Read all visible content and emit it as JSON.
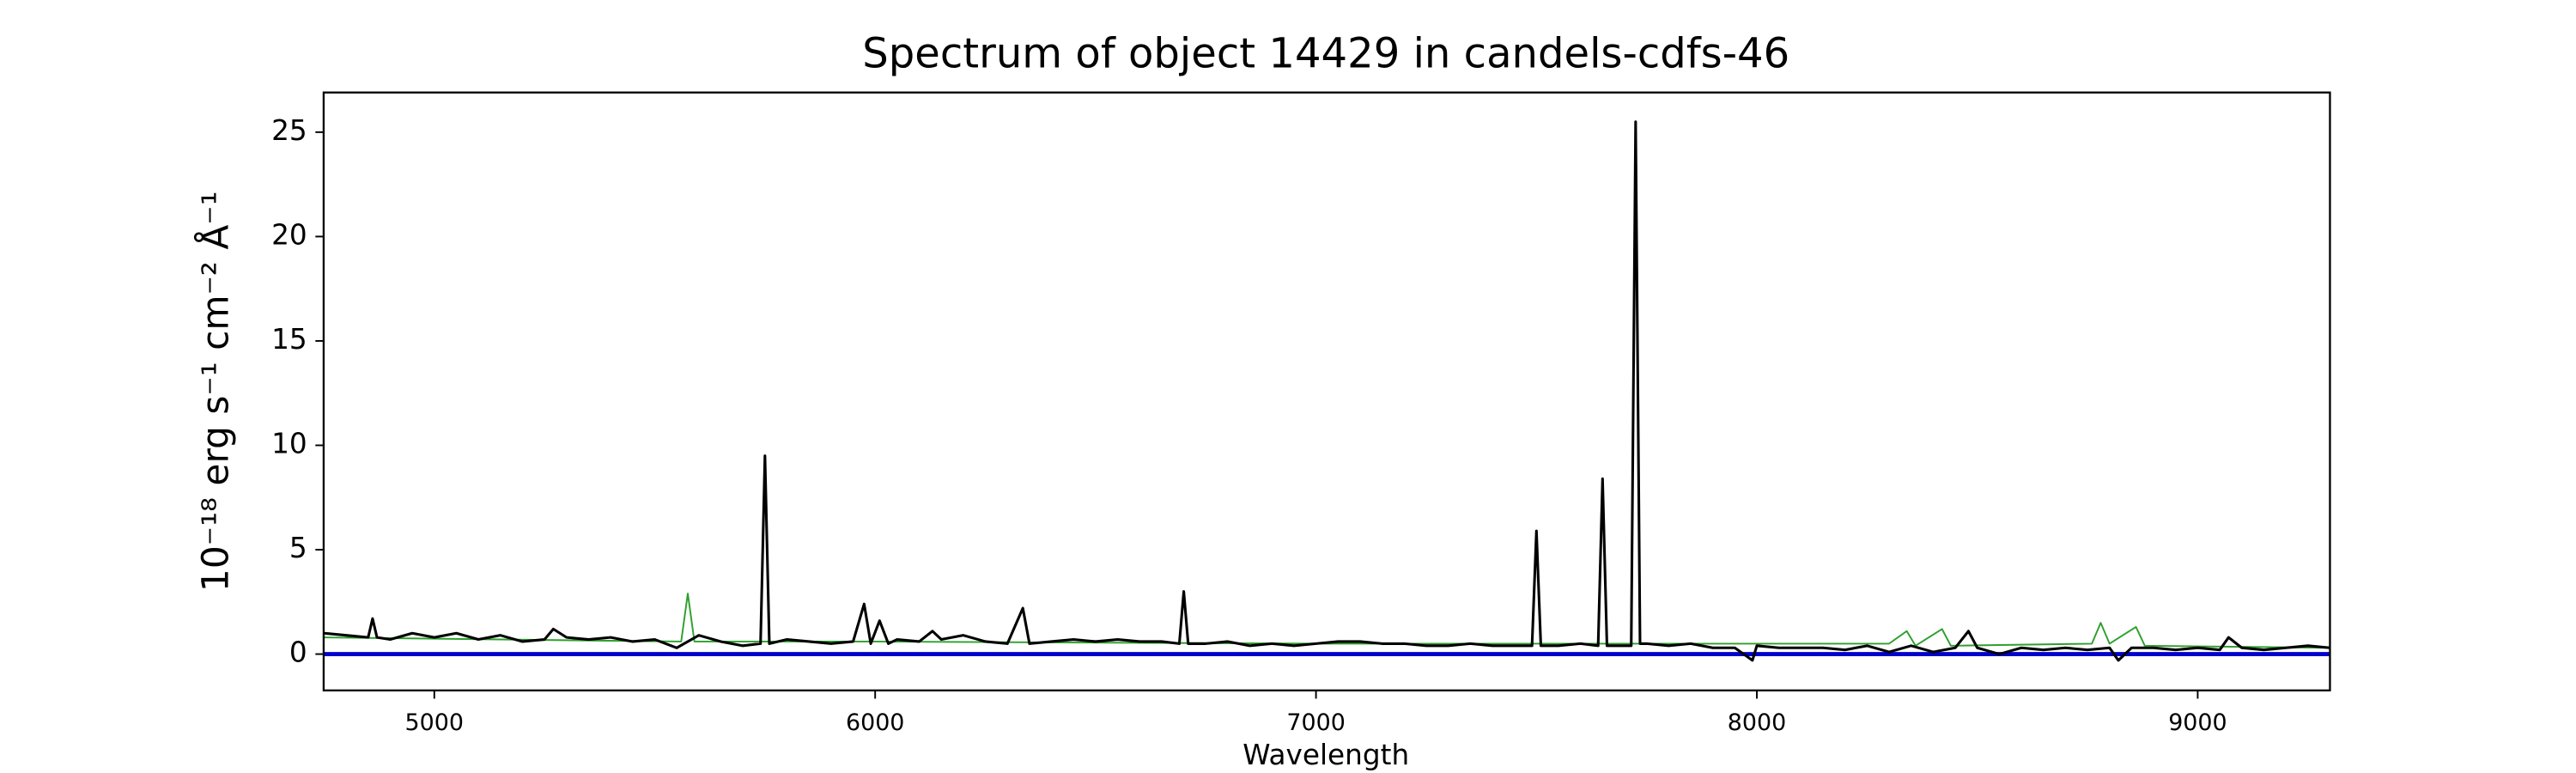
{
  "chart_data": {
    "type": "line",
    "title": "Spectrum of object 14429 in candels-cdfs-46",
    "x_label": "Wavelength",
    "y_label": "10⁻¹⁸ erg s⁻¹ cm⁻² Å⁻¹",
    "xlim": [
      4749,
      9300
    ],
    "ylim": [
      -1.74,
      26.9
    ],
    "xticks": [
      5000,
      6000,
      7000,
      8000,
      9000
    ],
    "yticks": [
      0,
      5,
      10,
      15,
      20,
      25
    ],
    "series": [
      {
        "color": "#2ca02c",
        "width": 1,
        "x": [
          4750,
          5560,
          5575,
          5590,
          6000,
          7000,
          8300,
          8340,
          8360,
          8420,
          8440,
          8760,
          8780,
          8800,
          8860,
          8880,
          9300
        ],
        "values": [
          0.8,
          0.6,
          2.9,
          0.6,
          0.6,
          0.5,
          0.5,
          1.1,
          0.4,
          1.2,
          0.4,
          0.5,
          1.5,
          0.5,
          1.3,
          0.4,
          0.3
        ]
      },
      {
        "color": "#0000cc",
        "width": 2.5,
        "x": [
          4750,
          9300
        ],
        "values": [
          0,
          0
        ]
      },
      {
        "color": "#000000",
        "width": 1.6,
        "x": [
          4750,
          4800,
          4850,
          4860,
          4870,
          4900,
          4950,
          5000,
          5050,
          5100,
          5150,
          5200,
          5250,
          5270,
          5300,
          5350,
          5400,
          5450,
          5500,
          5550,
          5600,
          5650,
          5700,
          5740,
          5750,
          5760,
          5800,
          5850,
          5900,
          5950,
          5975,
          5990,
          6010,
          6030,
          6050,
          6100,
          6130,
          6150,
          6200,
          6250,
          6300,
          6335,
          6350,
          6400,
          6450,
          6500,
          6550,
          6600,
          6650,
          6690,
          6700,
          6710,
          6750,
          6800,
          6850,
          6900,
          6950,
          7000,
          7050,
          7100,
          7150,
          7200,
          7250,
          7300,
          7350,
          7400,
          7450,
          7490,
          7500,
          7510,
          7550,
          7600,
          7640,
          7650,
          7660,
          7700,
          7715,
          7725,
          7735,
          7750,
          7800,
          7850,
          7900,
          7950,
          7990,
          8000,
          8050,
          8100,
          8150,
          8200,
          8250,
          8300,
          8350,
          8400,
          8450,
          8480,
          8500,
          8550,
          8600,
          8650,
          8700,
          8750,
          8800,
          8820,
          8850,
          8900,
          8950,
          9000,
          9050,
          9070,
          9100,
          9150,
          9200,
          9250,
          9300
        ],
        "values": [
          1.0,
          0.9,
          0.8,
          1.7,
          0.8,
          0.7,
          1.0,
          0.8,
          1.0,
          0.7,
          0.9,
          0.6,
          0.7,
          1.2,
          0.8,
          0.7,
          0.8,
          0.6,
          0.7,
          0.3,
          0.9,
          0.6,
          0.4,
          0.5,
          9.5,
          0.5,
          0.7,
          0.6,
          0.5,
          0.6,
          2.4,
          0.5,
          1.6,
          0.5,
          0.7,
          0.6,
          1.1,
          0.7,
          0.9,
          0.6,
          0.5,
          2.2,
          0.5,
          0.6,
          0.7,
          0.6,
          0.7,
          0.6,
          0.6,
          0.5,
          3.0,
          0.5,
          0.5,
          0.6,
          0.4,
          0.5,
          0.4,
          0.5,
          0.6,
          0.6,
          0.5,
          0.5,
          0.4,
          0.4,
          0.5,
          0.4,
          0.4,
          0.4,
          5.9,
          0.4,
          0.4,
          0.5,
          0.4,
          8.4,
          0.4,
          0.4,
          0.4,
          25.5,
          0.5,
          0.5,
          0.4,
          0.5,
          0.3,
          0.3,
          -0.3,
          0.4,
          0.3,
          0.3,
          0.3,
          0.2,
          0.4,
          0.1,
          0.4,
          0.1,
          0.3,
          1.1,
          0.3,
          0.0,
          0.3,
          0.2,
          0.3,
          0.2,
          0.3,
          -0.3,
          0.3,
          0.3,
          0.2,
          0.3,
          0.2,
          0.8,
          0.3,
          0.2,
          0.3,
          0.4,
          0.3
        ]
      }
    ]
  }
}
